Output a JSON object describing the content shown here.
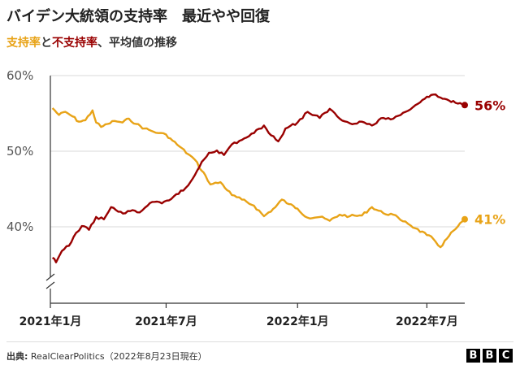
{
  "header": {
    "title": "バイデン大統領の支持率　最近やや回復",
    "subtitle_approve": "支持率",
    "subtitle_connector": "と",
    "subtitle_disapprove": "不支持率",
    "subtitle_rest": "、平均値の推移"
  },
  "colors": {
    "approve": "#e8a317",
    "disapprove": "#990000",
    "grid": "#d9d9d9",
    "axis": "#333333"
  },
  "chart_data": {
    "type": "line",
    "title": "バイデン大統領の支持率　最近やや回復",
    "ylim": [
      33,
      60
    ],
    "y_ticks": [
      40,
      50,
      60
    ],
    "y_tick_labels": [
      "40%",
      "50%",
      "60%"
    ],
    "x_ticks": [
      "2021-01-20",
      "2021-07-01",
      "2022-01-01",
      "2022-07-01"
    ],
    "x_tick_labels": [
      "2021年1月",
      "2021年7月",
      "2022年1月",
      "2022年7月"
    ],
    "xlim": [
      "2021-01-20",
      "2022-08-23"
    ],
    "grid": true,
    "y_axis_break": true,
    "series": [
      {
        "name": "支持率",
        "color": "#e8a317",
        "end_label": "41%",
        "points": [
          [
            "2021-01-23",
            55.7
          ],
          [
            "2021-02-01",
            54.8
          ],
          [
            "2021-02-10",
            55.2
          ],
          [
            "2021-02-20",
            54.6
          ],
          [
            "2021-03-01",
            53.9
          ],
          [
            "2021-03-10",
            54.1
          ],
          [
            "2021-03-20",
            55.4
          ],
          [
            "2021-03-25",
            53.8
          ],
          [
            "2021-04-01",
            53.2
          ],
          [
            "2021-04-10",
            53.6
          ],
          [
            "2021-04-20",
            54.0
          ],
          [
            "2021-05-01",
            53.8
          ],
          [
            "2021-05-10",
            54.3
          ],
          [
            "2021-05-20",
            53.6
          ],
          [
            "2021-06-01",
            53.0
          ],
          [
            "2021-06-10",
            52.7
          ],
          [
            "2021-06-20",
            52.4
          ],
          [
            "2021-07-01",
            52.2
          ],
          [
            "2021-07-10",
            51.4
          ],
          [
            "2021-07-20",
            50.6
          ],
          [
            "2021-08-01",
            49.6
          ],
          [
            "2021-08-10",
            48.9
          ],
          [
            "2021-08-20",
            47.4
          ],
          [
            "2021-08-25",
            46.8
          ],
          [
            "2021-09-01",
            45.6
          ],
          [
            "2021-09-15",
            45.9
          ],
          [
            "2021-10-01",
            44.2
          ],
          [
            "2021-10-15",
            43.6
          ],
          [
            "2021-11-01",
            42.8
          ],
          [
            "2021-11-15",
            41.4
          ],
          [
            "2021-12-01",
            42.6
          ],
          [
            "2021-12-10",
            43.6
          ],
          [
            "2021-12-20",
            43.0
          ],
          [
            "2022-01-01",
            42.4
          ],
          [
            "2022-01-15",
            41.2
          ],
          [
            "2022-02-01",
            41.3
          ],
          [
            "2022-02-15",
            40.8
          ],
          [
            "2022-03-01",
            41.6
          ],
          [
            "2022-03-15",
            41.4
          ],
          [
            "2022-04-01",
            41.5
          ],
          [
            "2022-04-15",
            42.6
          ],
          [
            "2022-05-01",
            41.8
          ],
          [
            "2022-05-15",
            41.6
          ],
          [
            "2022-05-25",
            40.9
          ],
          [
            "2022-06-01",
            40.7
          ],
          [
            "2022-06-15",
            39.8
          ],
          [
            "2022-07-01",
            38.9
          ],
          [
            "2022-07-10",
            38.4
          ],
          [
            "2022-07-20",
            37.3
          ],
          [
            "2022-08-01",
            38.8
          ],
          [
            "2022-08-10",
            39.7
          ],
          [
            "2022-08-23",
            41.0
          ]
        ]
      },
      {
        "name": "不支持率",
        "color": "#990000",
        "end_label": "56%",
        "points": [
          [
            "2021-01-23",
            35.9
          ],
          [
            "2021-01-28",
            35.3
          ],
          [
            "2021-02-05",
            36.8
          ],
          [
            "2021-02-15",
            37.5
          ],
          [
            "2021-02-25",
            39.2
          ],
          [
            "2021-03-05",
            40.1
          ],
          [
            "2021-03-15",
            39.6
          ],
          [
            "2021-03-25",
            41.3
          ],
          [
            "2021-04-05",
            41.0
          ],
          [
            "2021-04-15",
            42.6
          ],
          [
            "2021-04-25",
            42.0
          ],
          [
            "2021-05-05",
            41.8
          ],
          [
            "2021-05-15",
            42.2
          ],
          [
            "2021-05-25",
            41.9
          ],
          [
            "2021-06-05",
            42.8
          ],
          [
            "2021-06-15",
            43.3
          ],
          [
            "2021-06-25",
            43.1
          ],
          [
            "2021-07-05",
            43.5
          ],
          [
            "2021-07-15",
            44.3
          ],
          [
            "2021-07-25",
            44.8
          ],
          [
            "2021-08-01",
            45.5
          ],
          [
            "2021-08-10",
            46.8
          ],
          [
            "2021-08-20",
            48.6
          ],
          [
            "2021-08-30",
            49.8
          ],
          [
            "2021-09-10",
            50.1
          ],
          [
            "2021-09-20",
            49.5
          ],
          [
            "2021-10-01",
            50.9
          ],
          [
            "2021-10-15",
            51.5
          ],
          [
            "2021-11-01",
            52.4
          ],
          [
            "2021-11-15",
            53.4
          ],
          [
            "2021-11-25",
            52.1
          ],
          [
            "2021-12-05",
            51.3
          ],
          [
            "2021-12-15",
            53.0
          ],
          [
            "2022-01-01",
            53.8
          ],
          [
            "2022-01-15",
            55.2
          ],
          [
            "2022-02-01",
            54.4
          ],
          [
            "2022-02-15",
            55.6
          ],
          [
            "2022-03-01",
            54.3
          ],
          [
            "2022-03-15",
            53.7
          ],
          [
            "2022-04-01",
            53.9
          ],
          [
            "2022-04-15",
            53.4
          ],
          [
            "2022-05-01",
            54.4
          ],
          [
            "2022-05-15",
            54.3
          ],
          [
            "2022-06-01",
            55.2
          ],
          [
            "2022-06-15",
            56.1
          ],
          [
            "2022-07-01",
            57.2
          ],
          [
            "2022-07-10",
            57.5
          ],
          [
            "2022-07-20",
            57.1
          ],
          [
            "2022-08-01",
            56.7
          ],
          [
            "2022-08-10",
            56.4
          ],
          [
            "2022-08-23",
            56.1
          ]
        ]
      }
    ]
  },
  "footer": {
    "source_label": "出典:",
    "source_text": " RealClearPolitics（2022年8月23日現在）",
    "brand": [
      "B",
      "B",
      "C"
    ]
  }
}
